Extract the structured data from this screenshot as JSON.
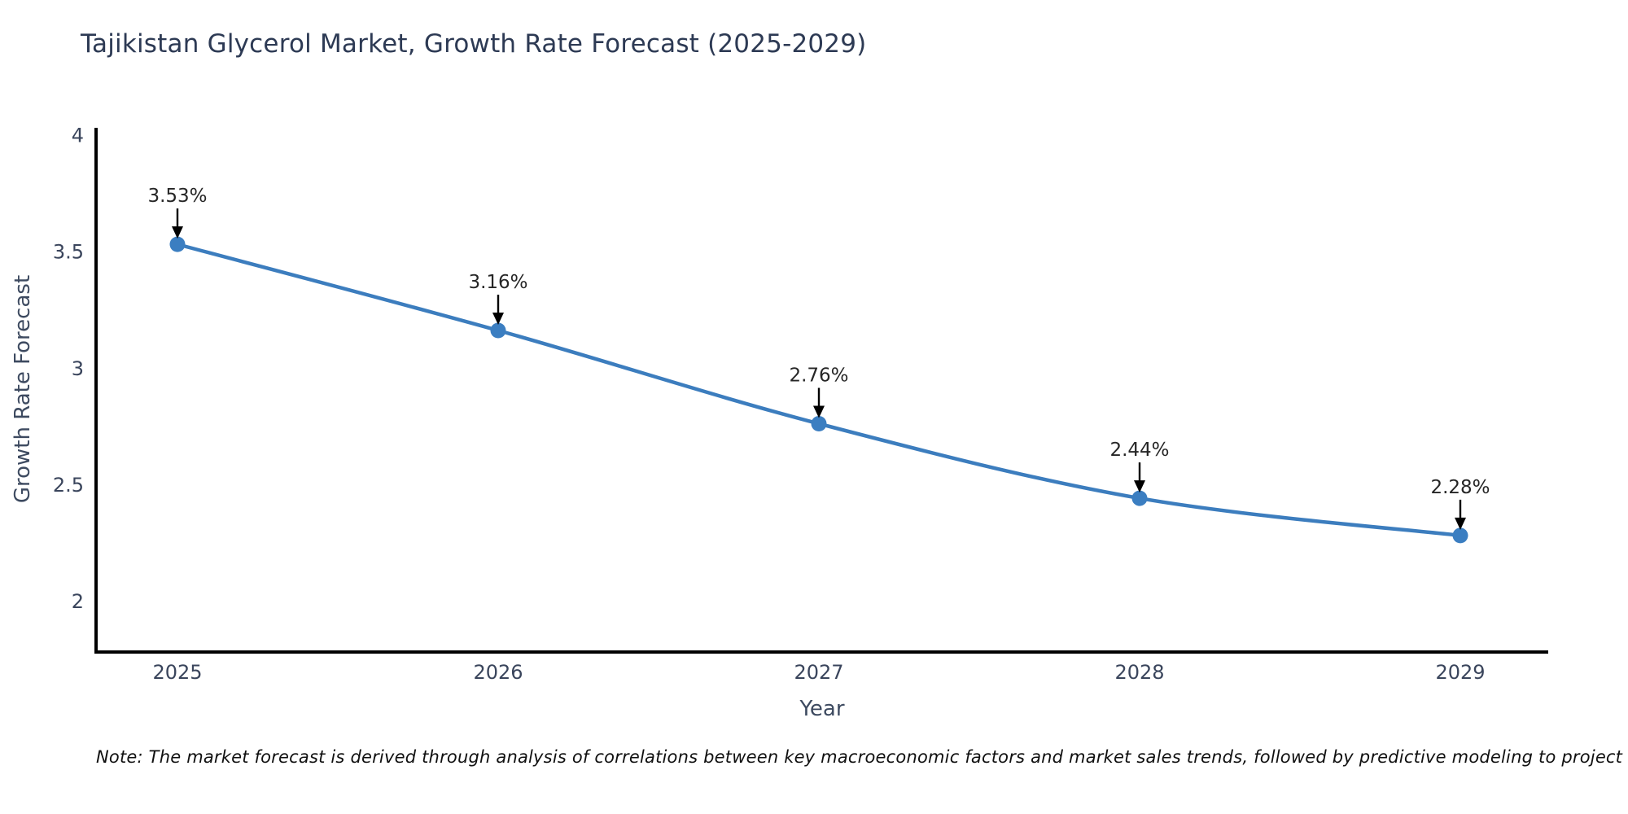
{
  "chart_data": {
    "type": "line",
    "title": "Tajikistan Glycerol Market, Growth Rate Forecast (2025-2029)",
    "xlabel": "Year",
    "ylabel": "Growth Rate Forecast",
    "categories": [
      "2025",
      "2026",
      "2027",
      "2028",
      "2029"
    ],
    "series": [
      {
        "name": "Growth Rate Forecast",
        "values": [
          3.53,
          3.16,
          2.76,
          2.44,
          2.28
        ]
      }
    ],
    "point_labels": [
      "3.53%",
      "3.16%",
      "2.76%",
      "2.44%",
      "2.28%"
    ],
    "y_ticks": [
      "4",
      "3.5",
      "3",
      "2.5",
      "2"
    ],
    "y_tick_values": [
      4,
      3.5,
      3,
      2.5,
      2
    ],
    "ylim": [
      1.78,
      4.03
    ],
    "grid": false,
    "legend": false,
    "colors": {
      "line": "#3c7dbe",
      "marker": "#3b7ec1",
      "axis": "#000000",
      "tick_label": "#3a455c",
      "annotation_text": "#262626",
      "annotation_arrow": "#000000",
      "title": "#2d3a54",
      "axis_title": "#3d4a60"
    }
  },
  "note": "Note: The market forecast is derived through analysis of correlations between key macroeconomic factors and market sales trends, followed by predictive modeling to project future sales"
}
